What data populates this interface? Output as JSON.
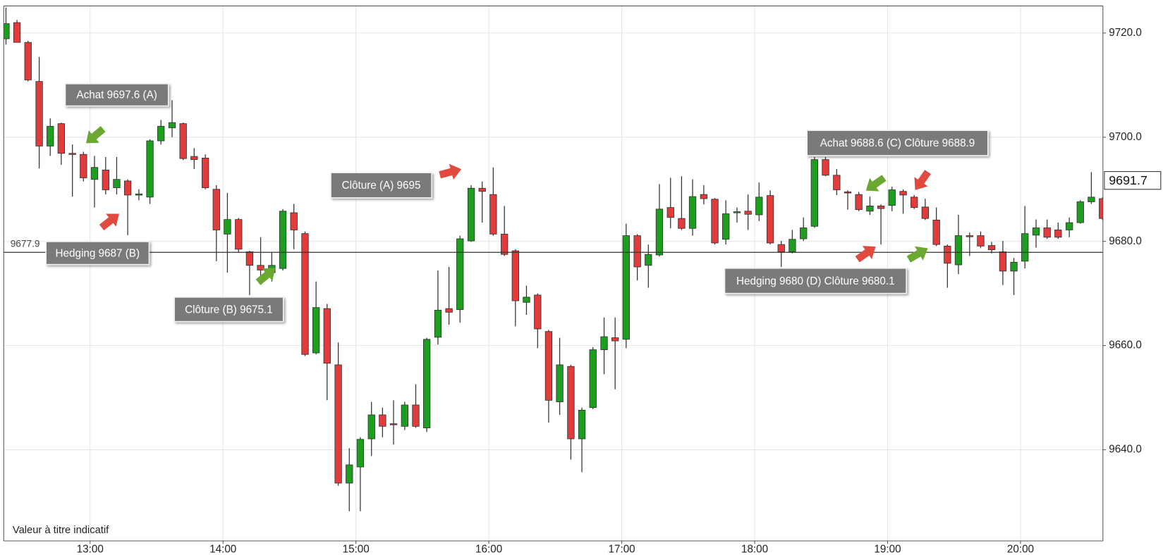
{
  "chart_data": {
    "type": "candlestick",
    "x": [
      12.367,
      12.45,
      12.533,
      12.617,
      12.7,
      12.783,
      12.867,
      12.95,
      13.033,
      13.117,
      13.2,
      13.283,
      13.367,
      13.45,
      13.533,
      13.617,
      13.7,
      13.783,
      13.867,
      13.95,
      14.033,
      14.117,
      14.2,
      14.283,
      14.367,
      14.45,
      14.533,
      14.617,
      14.7,
      14.783,
      14.867,
      14.95,
      15.033,
      15.117,
      15.2,
      15.283,
      15.367,
      15.45,
      15.533,
      15.617,
      15.7,
      15.783,
      15.867,
      15.95,
      16.033,
      16.117,
      16.2,
      16.283,
      16.367,
      16.45,
      16.533,
      16.617,
      16.7,
      16.783,
      16.867,
      16.95,
      17.033,
      17.117,
      17.2,
      17.283,
      17.367,
      17.45,
      17.533,
      17.617,
      17.7,
      17.783,
      17.867,
      17.95,
      18.033,
      18.117,
      18.2,
      18.283,
      18.367,
      18.45,
      18.533,
      18.617,
      18.7,
      18.783,
      18.867,
      18.95,
      19.033,
      19.117,
      19.2,
      19.283,
      19.367,
      19.45,
      19.533,
      19.617,
      19.7,
      19.783,
      19.867,
      19.95,
      20.033,
      20.117,
      20.2,
      20.283,
      20.367,
      20.45,
      20.533,
      20.617
    ],
    "open": [
      9718.9,
      9722.0,
      9718.2,
      9710.7,
      9698.3,
      9702.6,
      9696.9,
      9696.7,
      9691.9,
      9693.7,
      9690.3,
      9691.6,
      9689.0,
      9688.5,
      9699.3,
      9701.8,
      9702.6,
      9696.3,
      9696.0,
      9690.0,
      9681.4,
      9684.2,
      9678.0,
      9675.4,
      9674.0,
      9674.8,
      9685.5,
      9681.5,
      9658.6,
      9667.1,
      9656.3,
      9633.6,
      9636.7,
      9642.1,
      9646.7,
      9645.0,
      9644.5,
      9648.6,
      9644.2,
      9661.6,
      9667.1,
      9666.9,
      9680.1,
      9690.2,
      9689.0,
      9681.4,
      9678.2,
      9668.3,
      9669.7,
      9662.7,
      9649.2,
      9656.0,
      9642.1,
      9648.1,
      9659.2,
      9661.5,
      9661.2,
      9681.1,
      9675.4,
      9677.4,
      9686.5,
      9684.4,
      9682.5,
      9689.0,
      9688.1,
      9680.4,
      9685.6,
      9685.8,
      9685.1,
      9688.8,
      9679.4,
      9678.0,
      9680.5,
      9682.9,
      9695.7,
      9692.7,
      9689.5,
      9689.0,
      9685.8,
      9686.8,
      9686.9,
      9689.6,
      9688.5,
      9686.6,
      9684.1,
      9679.1,
      9675.5,
      9681.1,
      9681.1,
      9679.2,
      9678.0,
      9674.3,
      9676.2,
      9681.2,
      9682.6,
      9682.2,
      9682.2,
      9683.6,
      9687.6,
      9688.2
    ],
    "high": [
      9724.9,
      9722.5,
      9718.5,
      9715.4,
      9703.6,
      9702.8,
      9698.6,
      9697.2,
      9696.4,
      9696.2,
      9696.2,
      9691.9,
      9690.0,
      9699.6,
      9703.3,
      9707.1,
      9702.8,
      9697.9,
      9696.7,
      9690.8,
      9689.3,
      9684.5,
      9678.2,
      9680.8,
      9678.0,
      9686.2,
      9687.2,
      9681.9,
      9672.3,
      9668.0,
      9660.6,
      9640.3,
      9642.4,
      9649.2,
      9648.1,
      9649.5,
      9649.2,
      9652.6,
      9661.5,
      9674.4,
      9675.1,
      9681.1,
      9690.8,
      9691.5,
      9694.2,
      9686.8,
      9678.5,
      9671.5,
      9670.0,
      9663.0,
      9661.5,
      9656.3,
      9648.1,
      9659.7,
      9665.4,
      9665.4,
      9683.4,
      9681.4,
      9679.4,
      9691.0,
      9692.2,
      9692.5,
      9691.9,
      9690.8,
      9688.3,
      9687.9,
      9686.5,
      9689.0,
      9691.3,
      9689.8,
      9680.1,
      9682.2,
      9684.6,
      9696.2,
      9696.2,
      9693.9,
      9689.8,
      9689.5,
      9688.6,
      9687.1,
      9690.5,
      9690.0,
      9688.9,
      9688.2,
      9686.5,
      9679.4,
      9685.1,
      9681.7,
      9681.9,
      9679.9,
      9680.1,
      9676.8,
      9686.8,
      9684.2,
      9684.2,
      9683.6,
      9684.6,
      9687.9,
      9693.3,
      9688.5
    ],
    "low": [
      9717.8,
      9718.2,
      9710.7,
      9694.0,
      9696.4,
      9694.7,
      9688.6,
      9691.5,
      9686.5,
      9689.0,
      9689.0,
      9681.2,
      9687.9,
      9687.2,
      9698.6,
      9700.0,
      9695.6,
      9693.9,
      9690.0,
      9676.2,
      9674.0,
      9678.0,
      9669.7,
      9671.7,
      9672.3,
      9674.4,
      9678.5,
      9658.0,
      9658.3,
      9649.5,
      9633.1,
      9628.2,
      9628.2,
      9638.8,
      9642.4,
      9641.0,
      9643.8,
      9644.2,
      9643.4,
      9660.2,
      9664.0,
      9664.4,
      9679.9,
      9683.6,
      9681.1,
      9677.2,
      9663.7,
      9665.9,
      9659.5,
      9645.2,
      9646.7,
      9638.1,
      9635.7,
      9647.8,
      9654.5,
      9651.6,
      9659.5,
      9672.5,
      9671.1,
      9677.1,
      9682.5,
      9682.2,
      9681.1,
      9687.1,
      9679.4,
      9679.4,
      9683.6,
      9682.2,
      9683.9,
      9679.4,
      9675.1,
      9677.7,
      9680.1,
      9682.6,
      9692.5,
      9688.9,
      9686.1,
      9685.8,
      9685.1,
      9679.4,
      9685.8,
      9685.3,
      9686.2,
      9684.1,
      9679.1,
      9671.1,
      9673.7,
      9677.2,
      9678.7,
      9677.7,
      9671.6,
      9669.7,
      9674.8,
      9678.8,
      9680.5,
      9680.5,
      9680.8,
      9683.4,
      9687.2,
      9684.1
    ],
    "close": [
      9721.8,
      9718.2,
      9711.0,
      9698.3,
      9702.1,
      9696.9,
      9696.7,
      9692.2,
      9694.2,
      9689.9,
      9691.9,
      9688.9,
      9689.1,
      9699.3,
      9702.1,
      9702.8,
      9695.9,
      9695.7,
      9690.3,
      9682.2,
      9684.2,
      9678.5,
      9675.4,
      9674.5,
      9675.4,
      9685.8,
      9682.2,
      9658.3,
      9667.3,
      9656.6,
      9633.6,
      9637.1,
      9642.0,
      9646.7,
      9644.5,
      9644.9,
      9648.6,
      9644.5,
      9661.2,
      9666.8,
      9666.4,
      9680.5,
      9690.2,
      9689.6,
      9681.4,
      9677.5,
      9668.6,
      9669.3,
      9663.2,
      9649.5,
      9656.3,
      9642.1,
      9647.6,
      9659.2,
      9661.7,
      9660.9,
      9681.1,
      9675.1,
      9677.5,
      9686.2,
      9684.6,
      9682.5,
      9688.6,
      9688.2,
      9679.7,
      9685.3,
      9685.7,
      9685.2,
      9688.5,
      9679.7,
      9678.0,
      9680.4,
      9682.6,
      9695.7,
      9692.7,
      9689.9,
      9689.4,
      9686.1,
      9686.8,
      9686.3,
      9689.9,
      9688.9,
      9686.5,
      9684.4,
      9679.4,
      9675.8,
      9681.1,
      9681.0,
      9679.1,
      9678.4,
      9674.3,
      9676.0,
      9681.5,
      9682.6,
      9680.8,
      9680.8,
      9683.6,
      9687.6,
      9688.5,
      9684.4
    ],
    "up_color": "#1e9e1e",
    "down_color": "#e23b3b",
    "xlim": [
      12.35,
      20.62
    ],
    "xticks": [
      {
        "value": 13,
        "label": "13:00"
      },
      {
        "value": 14,
        "label": "14:00"
      },
      {
        "value": 15,
        "label": "15:00"
      },
      {
        "value": 16,
        "label": "16:00"
      },
      {
        "value": 17,
        "label": "17:00"
      },
      {
        "value": 18,
        "label": "18:00"
      },
      {
        "value": 19,
        "label": "19:00"
      },
      {
        "value": 20,
        "label": "20:00"
      }
    ],
    "ylim": [
      9622.5,
      9725.2
    ],
    "yticks": [
      {
        "value": 9640,
        "label": "9640.0"
      },
      {
        "value": 9660,
        "label": "9660.0"
      },
      {
        "value": 9680,
        "label": "9680.0"
      },
      {
        "value": 9700,
        "label": "9700.0"
      },
      {
        "value": 9720,
        "label": "9720.0"
      }
    ],
    "grid": true,
    "reference_line": 9677.9,
    "last_price": 9691.7,
    "annotations": [
      "Achat 9697.6 (A)",
      "Hedging 9687 (B)",
      "Clôture (B) 9675.1",
      "Clôture (A) 9695",
      "Achat 9688.6 (C) Clôture 9688.9",
      "Hedging 9680 (D) Clôture 9680.1"
    ],
    "note": "Valeur à titre indicatif"
  }
}
